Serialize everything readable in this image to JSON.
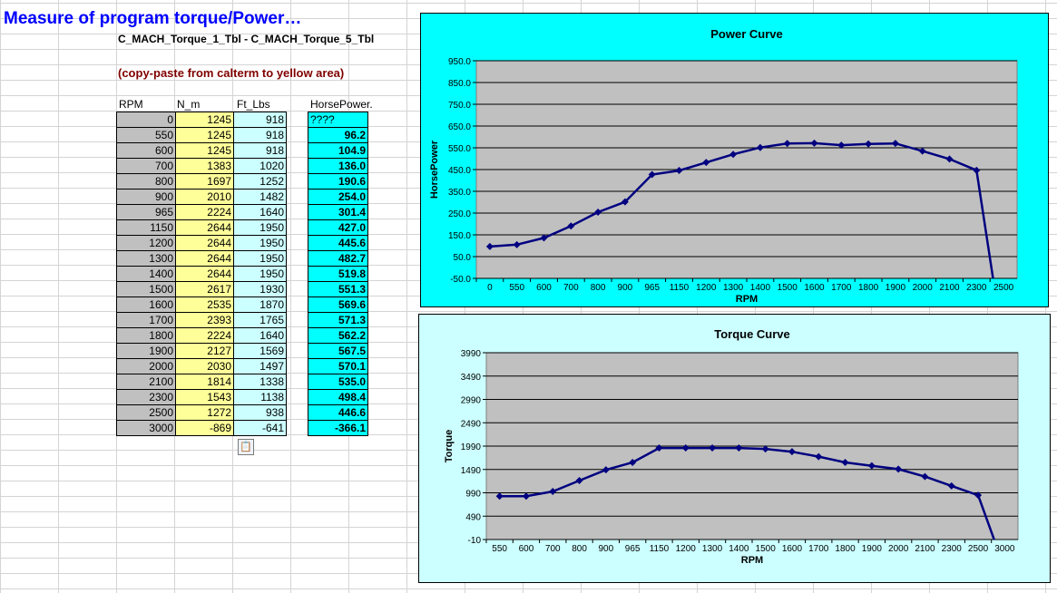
{
  "sheet": {
    "title": "Measure of program torque/Power…",
    "subtitle": "C_MACH_Torque_1_Tbl - C_MACH_Torque_5_Tbl",
    "note": "(copy-paste from calterm to yellow area)",
    "headers": {
      "rpm": "RPM",
      "nm": "N_m",
      "ft": "Ft_Lbs",
      "hp": "HorsePower."
    },
    "rpm": [
      "0",
      "550",
      "600",
      "700",
      "800",
      "900",
      "965",
      "1150",
      "1200",
      "1300",
      "1400",
      "1500",
      "1600",
      "1700",
      "1800",
      "1900",
      "2000",
      "2100",
      "2300",
      "2500",
      "3000"
    ],
    "nm": [
      "1245",
      "1245",
      "1245",
      "1383",
      "1697",
      "2010",
      "2224",
      "2644",
      "2644",
      "2644",
      "2644",
      "2617",
      "2535",
      "2393",
      "2224",
      "2127",
      "2030",
      "1814",
      "1543",
      "1272",
      "-869"
    ],
    "ft": [
      "918",
      "918",
      "918",
      "1020",
      "1252",
      "1482",
      "1640",
      "1950",
      "1950",
      "1950",
      "1950",
      "1930",
      "1870",
      "1765",
      "1640",
      "1569",
      "1497",
      "1338",
      "1138",
      "938",
      "-641"
    ],
    "hp": [
      "????",
      "96.2",
      "104.9",
      "136.0",
      "190.6",
      "254.0",
      "301.4",
      "427.0",
      "445.6",
      "482.7",
      "519.8",
      "551.3",
      "569.6",
      "571.3",
      "562.2",
      "567.5",
      "570.1",
      "535.0",
      "498.4",
      "446.6",
      "-366.1"
    ],
    "paste_icon": "clipboard-icon"
  },
  "chart_data": [
    {
      "type": "line",
      "title": "Power Curve",
      "xlabel": "RPM",
      "ylabel": "HorsePower",
      "categories": [
        "0",
        "550",
        "600",
        "700",
        "800",
        "900",
        "965",
        "1150",
        "1200",
        "1300",
        "1400",
        "1500",
        "1600",
        "1700",
        "1800",
        "1900",
        "2000",
        "2100",
        "2300",
        "2500"
      ],
      "series": [
        {
          "values": [
            96.2,
            104.9,
            136.0,
            190.6,
            254.0,
            301.4,
            427.0,
            445.6,
            482.7,
            519.8,
            551.3,
            569.6,
            571.3,
            562.2,
            567.5,
            570.1,
            535.0,
            498.4,
            446.6,
            -366.1
          ],
          "color": "#000080"
        }
      ],
      "ylim": [
        -50,
        950
      ],
      "yticks": [
        "-50.0",
        "50.0",
        "150.0",
        "250.0",
        "350.0",
        "450.0",
        "550.0",
        "650.0",
        "750.0",
        "850.0",
        "950.0"
      ],
      "grid": true,
      "plot_color": "#c0c0c0",
      "background": "#00ffff"
    },
    {
      "type": "line",
      "title": "Torque Curve",
      "xlabel": "RPM",
      "ylabel": "Torque",
      "categories": [
        "550",
        "600",
        "700",
        "800",
        "900",
        "965",
        "1150",
        "1200",
        "1300",
        "1400",
        "1500",
        "1600",
        "1700",
        "1800",
        "1900",
        "2000",
        "2100",
        "2300",
        "2500",
        "3000"
      ],
      "series": [
        {
          "values": [
            918,
            918,
            1020,
            1252,
            1482,
            1640,
            1950,
            1950,
            1950,
            1950,
            1930,
            1870,
            1765,
            1640,
            1569,
            1497,
            1338,
            1138,
            938,
            -641
          ],
          "color": "#000080"
        }
      ],
      "ylim": [
        -10,
        3990
      ],
      "yticks": [
        "-10",
        "490",
        "990",
        "1490",
        "1990",
        "2490",
        "2990",
        "3490",
        "3990"
      ],
      "grid": true,
      "plot_color": "#c0c0c0",
      "background": "#ccffff"
    }
  ]
}
